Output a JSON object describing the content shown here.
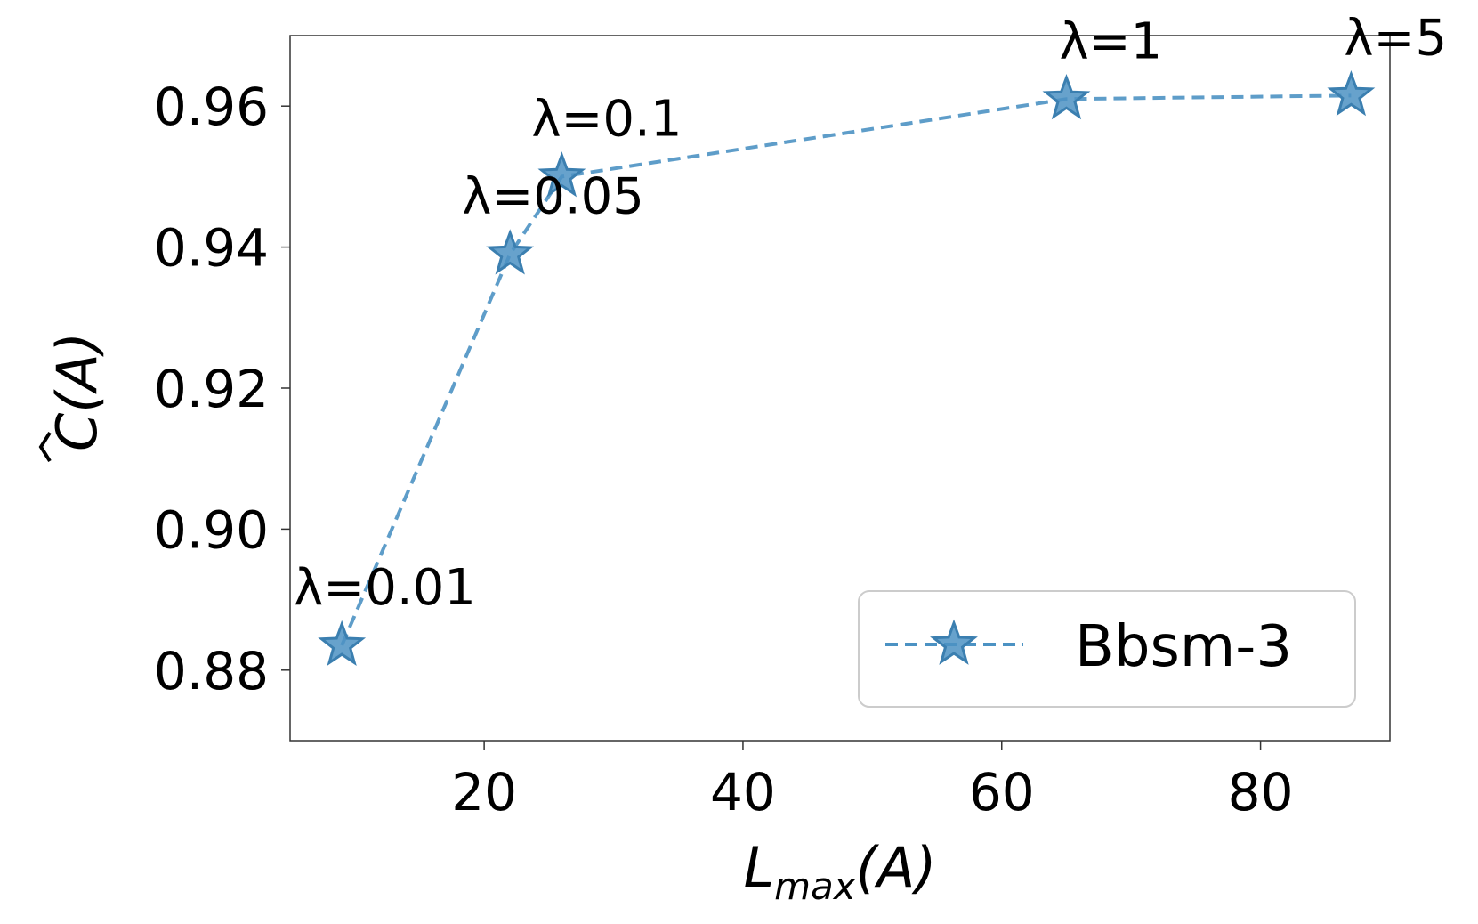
{
  "chart_data": {
    "type": "line",
    "xlabel_main": "L",
    "xlabel_sub": "max",
    "xlabel_tail": "(A)",
    "ylabel": "C(A)",
    "xlim": [
      5,
      90
    ],
    "ylim": [
      0.87,
      0.97
    ],
    "xticks": [
      20,
      40,
      60,
      80
    ],
    "yticks": [
      0.88,
      0.9,
      0.92,
      0.94,
      0.96
    ],
    "ytick_labels": [
      "0.88",
      "0.90",
      "0.92",
      "0.94",
      "0.96"
    ],
    "xtick_labels": [
      "20",
      "40",
      "60",
      "80"
    ],
    "grid": false,
    "legend_position": "lower-right",
    "series": [
      {
        "name": "Bbsm-3",
        "color": "#4c92c3",
        "marker": "star",
        "linestyle": "dashed",
        "x": [
          9,
          22,
          26,
          65,
          87
        ],
        "y": [
          0.8835,
          0.939,
          0.95,
          0.961,
          0.9615
        ],
        "annotations": [
          "λ=0.01",
          "λ=0.05",
          "λ=0.1",
          "λ=1",
          "λ=5"
        ]
      }
    ]
  }
}
